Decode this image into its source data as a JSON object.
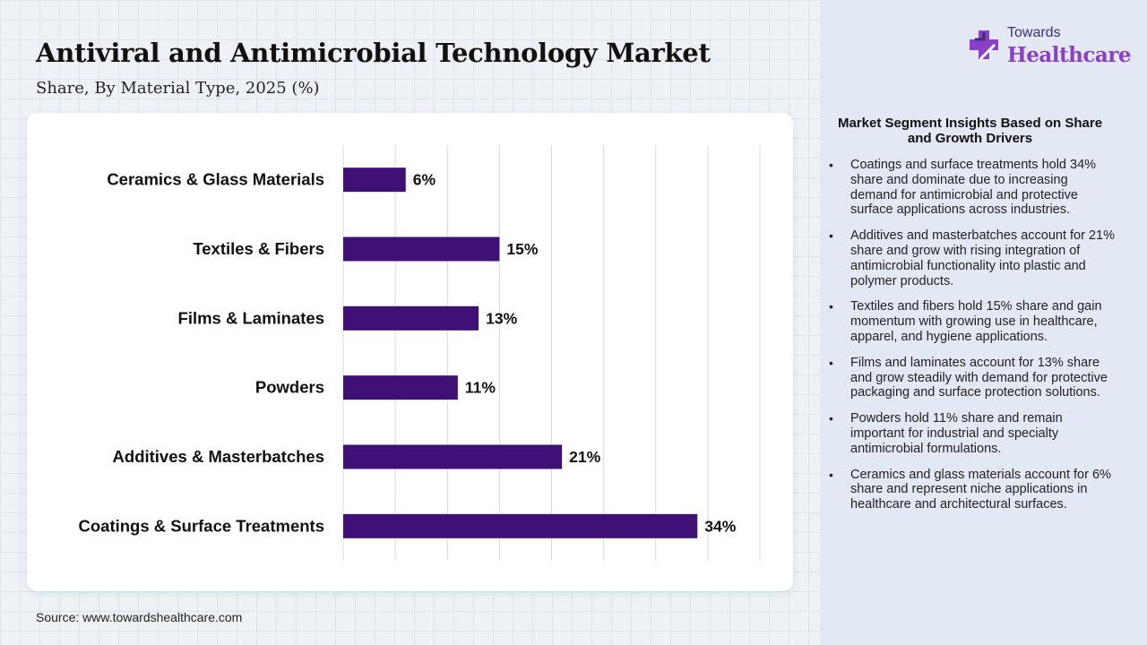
{
  "header": {
    "title": "Antiviral and Antimicrobial Technology Market",
    "subtitle": "Share, By Material Type, 2025 (%)"
  },
  "logo": {
    "line1": "Towards",
    "line2": "Healthcare",
    "icon": "medical-cross-icon"
  },
  "source": "Source: www.towardshealthcare.com",
  "colors": {
    "bar": "#3f1177",
    "brand_purple": "#8a3fc4",
    "panel_bg": "#e2e8f4"
  },
  "chart_data": {
    "type": "bar",
    "orientation": "horizontal",
    "categories": [
      "Ceramics & Glass Materials",
      "Textiles & Fibers",
      "Films & Laminates",
      "Powders",
      "Additives & Masterbatches",
      "Coatings & Surface Treatments"
    ],
    "values": [
      6,
      15,
      13,
      11,
      21,
      34
    ],
    "data_labels": [
      "6%",
      "15%",
      "13%",
      "11%",
      "21%",
      "34%"
    ],
    "xlim": [
      0,
      40
    ],
    "grid": true,
    "legend": "none"
  },
  "insights": {
    "heading": "Market Segment Insights Based on Share and Growth Drivers",
    "bullet": "•",
    "items": [
      "Coatings and surface treatments hold 34% share and dominate due to increasing demand for antimicrobial and protective surface applications across industries.",
      "Additives and masterbatches account for 21% share and grow with rising integration of antimicrobial functionality into plastic and polymer products.",
      "Textiles and fibers hold 15% share and gain momentum with growing use in healthcare, apparel, and hygiene applications.",
      "Films and laminates account for 13% share and grow steadily with demand for protective packaging and surface protection solutions.",
      "Powders hold 11% share and remain important for industrial and specialty antimicrobial formulations.",
      "Ceramics and glass materials account for 6% share and represent niche applications in healthcare and architectural surfaces."
    ]
  }
}
